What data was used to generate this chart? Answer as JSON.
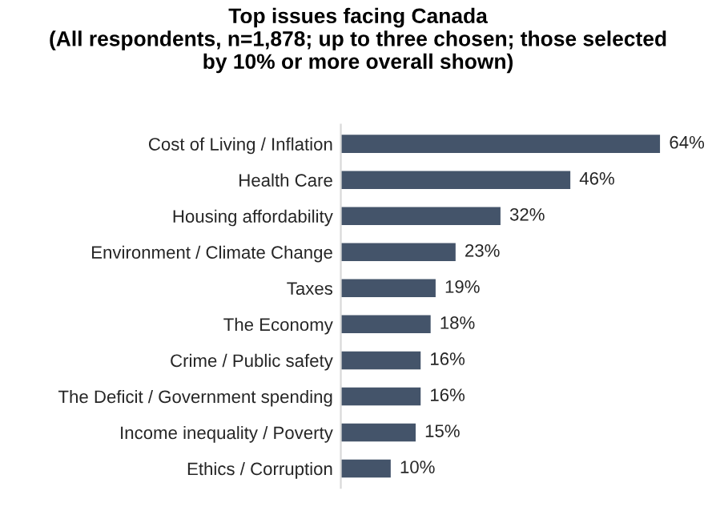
{
  "chart_data": {
    "type": "bar",
    "orientation": "horizontal",
    "title": "Top issues facing Canada\n(All respondents, n=1,878; up to three chosen; those selected\nby 10% or more overall shown)",
    "categories": [
      "Cost of Living / Inflation",
      "Health Care",
      "Housing affordability",
      "Environment / Climate Change",
      "Taxes",
      "The Economy",
      "Crime / Public safety",
      "The Deficit / Government spending",
      "Income inequality / Poverty",
      "Ethics / Corruption"
    ],
    "values": [
      64,
      46,
      32,
      23,
      19,
      18,
      16,
      16,
      15,
      10
    ],
    "value_labels": [
      "64%",
      "46%",
      "32%",
      "23%",
      "19%",
      "18%",
      "16%",
      "16%",
      "15%",
      "10%"
    ],
    "color": "#44546a",
    "grid": false,
    "legend": false,
    "tick_labels": "y"
  }
}
